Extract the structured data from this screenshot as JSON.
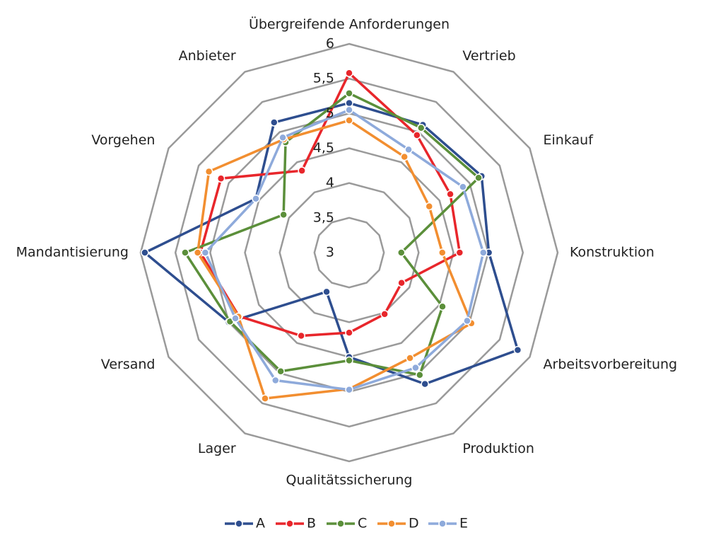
{
  "chart_data": {
    "type": "radar",
    "categories": [
      "Übergreifende Anforderungen",
      "Vertrieb",
      "Einkauf",
      "Konstruktion",
      "Arbeitsvorbereitung",
      "Produktion",
      "Qualitätssicherung",
      "Lager",
      "Versand",
      "Mandantisierung",
      "Vorgehen",
      "Anbieter"
    ],
    "ylim": [
      3,
      6
    ],
    "yticks": [
      {
        "value": 3,
        "label": "3"
      },
      {
        "value": 3.5,
        "label": "3,5"
      },
      {
        "value": 4,
        "label": "4"
      },
      {
        "value": 4.5,
        "label": "4,5"
      },
      {
        "value": 5,
        "label": "5"
      },
      {
        "value": 5.5,
        "label": "5,5"
      },
      {
        "value": 6,
        "label": "6"
      }
    ],
    "grid": true,
    "legend": "bottom",
    "series": [
      {
        "name": "A",
        "color": "#2e4e8f",
        "values": [
          5.15,
          5.12,
          5.2,
          5.01,
          5.8,
          5.18,
          4.5,
          3.65,
          5.0,
          5.94,
          4.55,
          5.16
        ]
      },
      {
        "name": "B",
        "color": "#e8262b",
        "values": [
          5.58,
          4.95,
          4.68,
          4.59,
          3.87,
          4.02,
          4.15,
          4.38,
          4.83,
          5.14,
          5.13,
          4.36
        ]
      },
      {
        "name": "C",
        "color": "#5b8f3a",
        "values": [
          5.29,
          5.07,
          5.15,
          3.75,
          4.55,
          5.03,
          4.55,
          4.97,
          4.98,
          5.36,
          4.09,
          4.83
        ]
      },
      {
        "name": "D",
        "color": "#f28e30",
        "values": [
          4.9,
          4.59,
          4.33,
          4.34,
          5.03,
          4.75,
          4.96,
          5.42,
          4.84,
          5.18,
          5.33,
          4.88
        ]
      },
      {
        "name": "E",
        "color": "#8eaadb",
        "values": [
          5.05,
          4.71,
          4.89,
          4.93,
          4.96,
          4.91,
          4.97,
          5.12,
          4.89,
          5.07,
          4.55,
          4.91
        ]
      }
    ]
  }
}
